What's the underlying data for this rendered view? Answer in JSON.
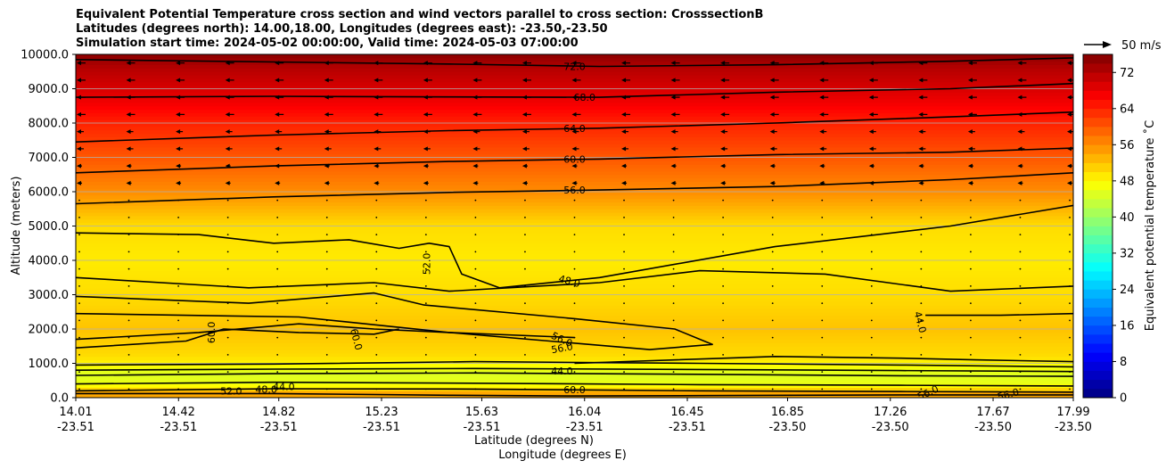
{
  "chart_data": {
    "type": "heatmap",
    "title_lines": [
      "Equivalent Potential Temperature cross section and wind vectors parallel to cross section: CrosssectionB",
      "Latitudes (degrees north): 14.00,18.00, Longitudes (degrees east): -23.50,-23.50",
      "Simulation start time: 2024-05-02 00:00:00, Valid time: 2024-05-03 07:00:00"
    ],
    "xlabel": "Latitude (degrees N)",
    "xlabel2": "Longitude (degrees E)",
    "ylabel": "Altitude (meters)",
    "xlim": [
      14.01,
      17.99
    ],
    "ylim": [
      0,
      10000
    ],
    "x_ticks": [
      {
        "lat": "14.01",
        "lon": "-23.51",
        "value": 14.01
      },
      {
        "lat": "14.42",
        "lon": "-23.51",
        "value": 14.42
      },
      {
        "lat": "14.82",
        "lon": "-23.51",
        "value": 14.82
      },
      {
        "lat": "15.23",
        "lon": "-23.51",
        "value": 15.23
      },
      {
        "lat": "15.63",
        "lon": "-23.51",
        "value": 15.63
      },
      {
        "lat": "16.04",
        "lon": "-23.51",
        "value": 16.04
      },
      {
        "lat": "16.45",
        "lon": "-23.51",
        "value": 16.45
      },
      {
        "lat": "16.85",
        "lon": "-23.50",
        "value": 16.85
      },
      {
        "lat": "17.26",
        "lon": "-23.50",
        "value": 17.26
      },
      {
        "lat": "17.67",
        "lon": "-23.50",
        "value": 17.67
      },
      {
        "lat": "17.99",
        "lon": "-23.50",
        "value": 17.99
      }
    ],
    "y_ticks": [
      {
        "label": "0.0",
        "value": 0
      },
      {
        "label": "1000.0",
        "value": 1000
      },
      {
        "label": "2000.0",
        "value": 2000
      },
      {
        "label": "3000.0",
        "value": 3000
      },
      {
        "label": "4000.0",
        "value": 4000
      },
      {
        "label": "5000.0",
        "value": 5000
      },
      {
        "label": "6000.0",
        "value": 6000
      },
      {
        "label": "7000.0",
        "value": 7000
      },
      {
        "label": "8000.0",
        "value": 8000
      },
      {
        "label": "9000.0",
        "value": 9000
      },
      {
        "label": "10000.0",
        "value": 10000
      }
    ],
    "grid": "horizontal",
    "colorbar": {
      "label": "Equivalent potential temperature $^\\circ$C",
      "label_display": "Equivalent potential temperature ˚C",
      "min": 0,
      "max": 76,
      "ticks": [
        {
          "label": "0",
          "value": 0
        },
        {
          "label": "8",
          "value": 8
        },
        {
          "label": "16",
          "value": 16
        },
        {
          "label": "24",
          "value": 24
        },
        {
          "label": "32",
          "value": 32
        },
        {
          "label": "40",
          "value": 40
        },
        {
          "label": "48",
          "value": 48
        },
        {
          "label": "56",
          "value": 56
        },
        {
          "label": "64",
          "value": 64
        },
        {
          "label": "72",
          "value": 72
        }
      ],
      "colormap": "jet"
    },
    "quiver_key": {
      "label": "50 m/s",
      "value": 50
    },
    "thetae_profile": [
      {
        "z": 0,
        "t": 54
      },
      {
        "z": 150,
        "t": 54
      },
      {
        "z": 400,
        "t": 46
      },
      {
        "z": 700,
        "t": 45
      },
      {
        "z": 1200,
        "t": 50
      },
      {
        "z": 2000,
        "t": 52
      },
      {
        "z": 3000,
        "t": 50
      },
      {
        "z": 4000,
        "t": 49
      },
      {
        "z": 5000,
        "t": 50
      },
      {
        "z": 6000,
        "t": 56
      },
      {
        "z": 7000,
        "t": 60
      },
      {
        "z": 8000,
        "t": 64
      },
      {
        "z": 8700,
        "t": 68
      },
      {
        "z": 9600,
        "t": 72
      },
      {
        "z": 10000,
        "t": 75
      }
    ],
    "contour_labels": [
      {
        "text": "72.0",
        "lat": 16.0,
        "alt": 9650
      },
      {
        "text": "68.0",
        "lat": 16.04,
        "alt": 8750
      },
      {
        "text": "64.0",
        "lat": 16.0,
        "alt": 7850
      },
      {
        "text": "60.0",
        "lat": 16.0,
        "alt": 6950
      },
      {
        "text": "56.0",
        "lat": 16.0,
        "alt": 6050
      },
      {
        "text": "52.0",
        "lat": 15.41,
        "alt": 3900,
        "rotate": -90
      },
      {
        "text": "48.0",
        "lat": 15.98,
        "alt": 3400,
        "rotate": 15
      },
      {
        "text": "44.0",
        "lat": 17.38,
        "alt": 2200,
        "rotate": 75
      },
      {
        "text": "60.0",
        "lat": 14.55,
        "alt": 1900,
        "rotate": -90
      },
      {
        "text": "60.0",
        "lat": 15.13,
        "alt": 1700,
        "rotate": 75
      },
      {
        "text": "56.0",
        "lat": 15.95,
        "alt": 1700,
        "rotate": 25
      },
      {
        "text": "56.0",
        "lat": 15.95,
        "alt": 1450,
        "rotate": -10
      },
      {
        "text": "44.0",
        "lat": 15.95,
        "alt": 780
      },
      {
        "text": "44.0",
        "lat": 14.84,
        "alt": 330
      },
      {
        "text": "48.0",
        "lat": 14.77,
        "alt": 250
      },
      {
        "text": "52.0",
        "lat": 14.63,
        "alt": 200
      },
      {
        "text": "60.0",
        "lat": 16.0,
        "alt": 240
      },
      {
        "text": "56.0",
        "lat": 17.41,
        "alt": 150,
        "rotate": -25
      },
      {
        "text": "56.0",
        "lat": 17.73,
        "alt": 100,
        "rotate": -15
      }
    ],
    "contours": [
      {
        "level": 72,
        "points": [
          [
            14.01,
            9850
          ],
          [
            14.8,
            9780
          ],
          [
            15.5,
            9720
          ],
          [
            16.1,
            9650
          ],
          [
            16.8,
            9700
          ],
          [
            17.5,
            9800
          ],
          [
            17.99,
            9900
          ]
        ]
      },
      {
        "level": 68,
        "points": [
          [
            14.01,
            8750
          ],
          [
            14.8,
            8780
          ],
          [
            15.5,
            8760
          ],
          [
            16.1,
            8750
          ],
          [
            16.8,
            8900
          ],
          [
            17.5,
            9000
          ],
          [
            17.99,
            9150
          ]
        ]
      },
      {
        "level": 64,
        "points": [
          [
            14.01,
            7450
          ],
          [
            14.8,
            7650
          ],
          [
            15.5,
            7780
          ],
          [
            16.1,
            7850
          ],
          [
            16.8,
            8000
          ],
          [
            17.5,
            8180
          ],
          [
            17.99,
            8320
          ]
        ]
      },
      {
        "level": 60,
        "points": [
          [
            14.01,
            6550
          ],
          [
            14.8,
            6750
          ],
          [
            15.5,
            6880
          ],
          [
            16.1,
            6950
          ],
          [
            16.8,
            7080
          ],
          [
            17.5,
            7150
          ],
          [
            17.99,
            7270
          ]
        ]
      },
      {
        "level": 56,
        "points": [
          [
            14.01,
            5650
          ],
          [
            14.8,
            5850
          ],
          [
            15.5,
            5980
          ],
          [
            16.1,
            6050
          ],
          [
            16.8,
            6150
          ],
          [
            17.5,
            6350
          ],
          [
            17.99,
            6550
          ]
        ]
      },
      {
        "level": 52,
        "points": [
          [
            14.01,
            4800
          ],
          [
            14.5,
            4750
          ],
          [
            14.8,
            4500
          ],
          [
            15.1,
            4600
          ],
          [
            15.3,
            4350
          ],
          [
            15.42,
            4500
          ],
          [
            15.5,
            4400
          ],
          [
            15.55,
            3600
          ],
          [
            15.7,
            3200
          ],
          [
            16.1,
            3500
          ],
          [
            16.8,
            4400
          ],
          [
            17.5,
            5000
          ],
          [
            17.99,
            5600
          ]
        ]
      },
      {
        "level": 48,
        "points": [
          [
            14.01,
            3500
          ],
          [
            14.7,
            3200
          ],
          [
            15.2,
            3350
          ],
          [
            15.5,
            3100
          ],
          [
            16.1,
            3350
          ],
          [
            16.5,
            3700
          ],
          [
            17.0,
            3600
          ],
          [
            17.5,
            3100
          ],
          [
            17.99,
            3250
          ]
        ]
      },
      {
        "level": 48,
        "points": [
          [
            14.01,
            2950
          ],
          [
            14.7,
            2750
          ],
          [
            15.2,
            3050
          ],
          [
            15.4,
            2700
          ],
          [
            16.0,
            2300
          ],
          [
            16.4,
            2000
          ],
          [
            16.55,
            1550
          ],
          [
            16.3,
            1400
          ],
          [
            15.9,
            1650
          ],
          [
            15.5,
            1900
          ],
          [
            14.9,
            2350
          ],
          [
            14.01,
            2450
          ]
        ]
      },
      {
        "level": 44,
        "points": [
          [
            17.4,
            2400
          ],
          [
            17.7,
            2400
          ],
          [
            17.99,
            2450
          ]
        ]
      },
      {
        "level": 44,
        "points": [
          [
            16.0,
            1000
          ],
          [
            16.8,
            1200
          ],
          [
            17.3,
            1150
          ],
          [
            17.6,
            1100
          ],
          [
            17.99,
            1050
          ]
        ]
      },
      {
        "level": 60,
        "points": [
          [
            14.01,
            1450
          ],
          [
            14.45,
            1650
          ],
          [
            14.6,
            2000
          ],
          [
            14.9,
            1900
          ],
          [
            15.2,
            1850
          ],
          [
            15.3,
            2000
          ]
        ]
      },
      {
        "level": 56,
        "points": [
          [
            14.01,
            1700
          ],
          [
            14.5,
            1900
          ],
          [
            14.9,
            2150
          ],
          [
            15.2,
            2000
          ],
          [
            15.5,
            1900
          ],
          [
            16.0,
            1750
          ]
        ]
      },
      {
        "level": 52,
        "points": [
          [
            14.01,
            950
          ],
          [
            14.8,
            980
          ],
          [
            15.6,
            1050
          ],
          [
            16.5,
            1000
          ],
          [
            17.3,
            950
          ],
          [
            17.99,
            900
          ]
        ]
      },
      {
        "level": 48,
        "points": [
          [
            14.01,
            800
          ],
          [
            14.8,
            830
          ],
          [
            15.6,
            850
          ],
          [
            16.5,
            820
          ],
          [
            17.3,
            790
          ],
          [
            17.99,
            760
          ]
        ]
      },
      {
        "level": 44,
        "points": [
          [
            14.01,
            650
          ],
          [
            14.8,
            700
          ],
          [
            15.6,
            720
          ],
          [
            16.5,
            680
          ],
          [
            17.3,
            640
          ],
          [
            17.99,
            620
          ]
        ]
      },
      {
        "level": 44,
        "points": [
          [
            14.01,
            400
          ],
          [
            14.8,
            450
          ],
          [
            15.6,
            420
          ],
          [
            16.5,
            380
          ],
          [
            17.3,
            360
          ],
          [
            17.99,
            340
          ]
        ]
      },
      {
        "level": 48,
        "points": [
          [
            14.01,
            200
          ],
          [
            14.8,
            260
          ],
          [
            15.6,
            250
          ],
          [
            16.5,
            200
          ],
          [
            17.3,
            180
          ],
          [
            17.99,
            160
          ]
        ]
      },
      {
        "level": 52,
        "points": [
          [
            14.01,
            120
          ],
          [
            14.8,
            120
          ],
          [
            15.5,
            70
          ],
          [
            16.0,
            50
          ],
          [
            16.5,
            60
          ],
          [
            17.3,
            80
          ],
          [
            17.99,
            80
          ]
        ]
      }
    ],
    "wind_arrows": "westward (toward lower latitude) winds along the cross section, largest in the 7000-10000 m layer and near zero below 5000 m"
  }
}
